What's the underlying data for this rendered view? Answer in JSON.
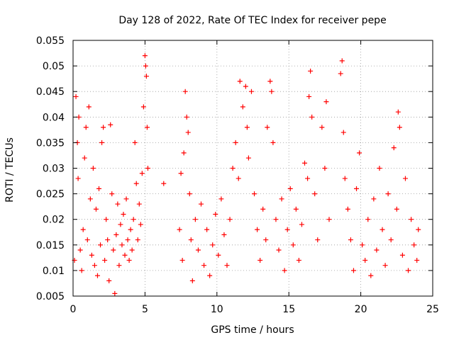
{
  "chart_data": {
    "type": "scatter",
    "title": "Day 128 of 2022, Rate Of TEC Index for receiver pepe",
    "xlabel": "GPS time / hours",
    "ylabel": "ROTI / TECUs",
    "xlim": [
      0,
      25
    ],
    "ylim": [
      0.005,
      0.055
    ],
    "xticks": [
      0,
      5,
      10,
      15,
      20,
      25
    ],
    "xtick_labels": [
      "0",
      "5",
      "10",
      "15",
      "20",
      "25"
    ],
    "yticks": [
      0.005,
      0.01,
      0.015,
      0.02,
      0.025,
      0.03,
      0.035,
      0.04,
      0.045,
      0.05,
      0.055
    ],
    "ytick_labels": [
      "0.005",
      "0.01",
      "0.015",
      "0.02",
      "0.025",
      "0.03",
      "0.035",
      "0.04",
      "0.045",
      "0.05",
      "0.055"
    ],
    "grid": true,
    "marker": "plus",
    "marker_color": "#ff0000",
    "series": [
      {
        "name": "ROTI",
        "points": [
          [
            0.1,
            0.012
          ],
          [
            0.2,
            0.044
          ],
          [
            0.3,
            0.035
          ],
          [
            0.35,
            0.028
          ],
          [
            0.4,
            0.04
          ],
          [
            0.5,
            0.014
          ],
          [
            0.6,
            0.01
          ],
          [
            0.7,
            0.018
          ],
          [
            0.8,
            0.032
          ],
          [
            0.9,
            0.038
          ],
          [
            1.0,
            0.016
          ],
          [
            1.1,
            0.042
          ],
          [
            1.2,
            0.024
          ],
          [
            1.3,
            0.013
          ],
          [
            1.4,
            0.03
          ],
          [
            1.5,
            0.011
          ],
          [
            1.6,
            0.022
          ],
          [
            1.7,
            0.009
          ],
          [
            1.8,
            0.026
          ],
          [
            1.9,
            0.015
          ],
          [
            2.0,
            0.035
          ],
          [
            2.1,
            0.038
          ],
          [
            2.2,
            0.012
          ],
          [
            2.3,
            0.02
          ],
          [
            2.4,
            0.016
          ],
          [
            2.5,
            0.008
          ],
          [
            2.6,
            0.0385
          ],
          [
            2.7,
            0.025
          ],
          [
            2.8,
            0.014
          ],
          [
            2.9,
            0.0055
          ],
          [
            3.0,
            0.017
          ],
          [
            3.1,
            0.023
          ],
          [
            3.2,
            0.011
          ],
          [
            3.3,
            0.019
          ],
          [
            3.4,
            0.015
          ],
          [
            3.5,
            0.021
          ],
          [
            3.6,
            0.013
          ],
          [
            3.7,
            0.024
          ],
          [
            3.8,
            0.016
          ],
          [
            3.9,
            0.012
          ],
          [
            4.0,
            0.018
          ],
          [
            4.1,
            0.014
          ],
          [
            4.2,
            0.02
          ],
          [
            4.3,
            0.035
          ],
          [
            4.4,
            0.027
          ],
          [
            4.5,
            0.016
          ],
          [
            4.6,
            0.023
          ],
          [
            4.7,
            0.019
          ],
          [
            4.8,
            0.029
          ],
          [
            4.9,
            0.042
          ],
          [
            5.0,
            0.052
          ],
          [
            5.05,
            0.05
          ],
          [
            5.1,
            0.048
          ],
          [
            5.15,
            0.038
          ],
          [
            5.2,
            0.03
          ],
          [
            6.3,
            0.027
          ],
          [
            7.4,
            0.018
          ],
          [
            7.5,
            0.029
          ],
          [
            7.6,
            0.012
          ],
          [
            7.7,
            0.033
          ],
          [
            7.8,
            0.045
          ],
          [
            7.9,
            0.04
          ],
          [
            8.0,
            0.037
          ],
          [
            8.1,
            0.025
          ],
          [
            8.2,
            0.016
          ],
          [
            8.3,
            0.008
          ],
          [
            8.5,
            0.02
          ],
          [
            8.7,
            0.014
          ],
          [
            8.9,
            0.023
          ],
          [
            9.1,
            0.011
          ],
          [
            9.3,
            0.018
          ],
          [
            9.5,
            0.009
          ],
          [
            9.7,
            0.015
          ],
          [
            9.9,
            0.021
          ],
          [
            10.1,
            0.013
          ],
          [
            10.3,
            0.024
          ],
          [
            10.5,
            0.017
          ],
          [
            10.7,
            0.011
          ],
          [
            10.9,
            0.02
          ],
          [
            11.1,
            0.03
          ],
          [
            11.3,
            0.035
          ],
          [
            11.5,
            0.028
          ],
          [
            11.6,
            0.047
          ],
          [
            11.8,
            0.042
          ],
          [
            12.0,
            0.046
          ],
          [
            12.1,
            0.038
          ],
          [
            12.2,
            0.032
          ],
          [
            12.4,
            0.045
          ],
          [
            12.6,
            0.025
          ],
          [
            12.8,
            0.018
          ],
          [
            13.0,
            0.012
          ],
          [
            13.2,
            0.022
          ],
          [
            13.4,
            0.016
          ],
          [
            13.5,
            0.038
          ],
          [
            13.7,
            0.047
          ],
          [
            13.8,
            0.045
          ],
          [
            13.9,
            0.035
          ],
          [
            14.1,
            0.02
          ],
          [
            14.3,
            0.014
          ],
          [
            14.5,
            0.024
          ],
          [
            14.7,
            0.01
          ],
          [
            14.9,
            0.018
          ],
          [
            15.1,
            0.026
          ],
          [
            15.3,
            0.015
          ],
          [
            15.5,
            0.022
          ],
          [
            15.7,
            0.012
          ],
          [
            15.9,
            0.019
          ],
          [
            16.1,
            0.031
          ],
          [
            16.3,
            0.028
          ],
          [
            16.4,
            0.044
          ],
          [
            16.5,
            0.049
          ],
          [
            16.6,
            0.04
          ],
          [
            16.8,
            0.025
          ],
          [
            17.0,
            0.016
          ],
          [
            17.3,
            0.038
          ],
          [
            17.5,
            0.03
          ],
          [
            17.6,
            0.043
          ],
          [
            17.8,
            0.02
          ],
          [
            18.6,
            0.0485
          ],
          [
            18.7,
            0.051
          ],
          [
            18.8,
            0.037
          ],
          [
            18.9,
            0.028
          ],
          [
            19.1,
            0.022
          ],
          [
            19.3,
            0.016
          ],
          [
            19.5,
            0.01
          ],
          [
            19.7,
            0.026
          ],
          [
            19.9,
            0.033
          ],
          [
            20.1,
            0.015
          ],
          [
            20.3,
            0.012
          ],
          [
            20.5,
            0.02
          ],
          [
            20.7,
            0.009
          ],
          [
            20.9,
            0.024
          ],
          [
            21.1,
            0.014
          ],
          [
            21.3,
            0.03
          ],
          [
            21.5,
            0.018
          ],
          [
            21.7,
            0.011
          ],
          [
            21.9,
            0.025
          ],
          [
            22.1,
            0.016
          ],
          [
            22.3,
            0.034
          ],
          [
            22.5,
            0.022
          ],
          [
            22.6,
            0.041
          ],
          [
            22.7,
            0.038
          ],
          [
            22.9,
            0.013
          ],
          [
            23.1,
            0.028
          ],
          [
            23.3,
            0.01
          ],
          [
            23.5,
            0.02
          ],
          [
            23.7,
            0.015
          ],
          [
            23.9,
            0.012
          ],
          [
            24.0,
            0.018
          ]
        ]
      }
    ]
  }
}
